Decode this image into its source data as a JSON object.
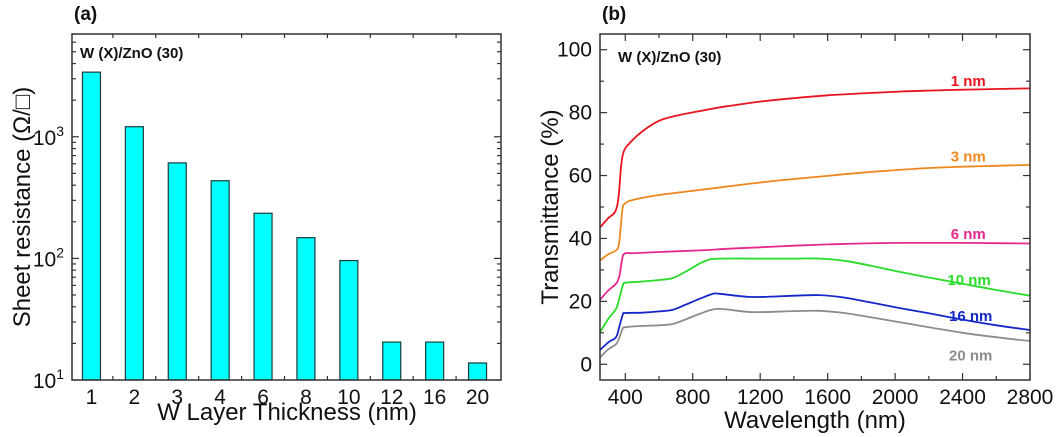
{
  "chart_data": [
    {
      "type": "bar",
      "panel_label": "(a)",
      "annotation": "W (X)/ZnO (30)",
      "title": "",
      "xlabel": "W Layer Thickness (nm)",
      "ylabel": "Sheet resistance (Ω/□)",
      "yscale": "log",
      "ylim": [
        10,
        7000
      ],
      "yticks": [
        {
          "value": 10,
          "base": "10",
          "exp": "1"
        },
        {
          "value": 100,
          "base": "10",
          "exp": "2"
        },
        {
          "value": 1000,
          "base": "10",
          "exp": "3"
        }
      ],
      "categories": [
        "1",
        "2",
        "3",
        "4",
        "6",
        "8",
        "10",
        "12",
        "16",
        "20"
      ],
      "values": [
        3400,
        1210,
        610,
        435,
        235,
        148,
        96,
        20.5,
        20.5,
        13.8
      ],
      "bar_color": "#00ffff",
      "grid": false
    },
    {
      "type": "line",
      "panel_label": "(b)",
      "annotation": "W (X)/ZnO (30)",
      "title": "",
      "xlabel": "Wavelength (nm)",
      "ylabel": "Transmittance (%)",
      "xlim": [
        250,
        2800
      ],
      "ylim": [
        -5,
        105
      ],
      "xticks": [
        400,
        800,
        1200,
        1600,
        2000,
        2400,
        2800
      ],
      "yticks": [
        0,
        20,
        40,
        60,
        80,
        100
      ],
      "grid": false,
      "series": [
        {
          "name": "1 nm",
          "color": "#e8141e",
          "label_at": [
            2330,
            88.5
          ],
          "x": [
            250,
            300,
            340,
            360,
            375,
            390,
            420,
            500,
            600,
            700,
            840,
            1000,
            1200,
            1400,
            1600,
            1800,
            2024,
            2200,
            2400,
            2600,
            2800
          ],
          "y": [
            43.5,
            46.5,
            48.5,
            53,
            63,
            67.5,
            70,
            74,
            77.4,
            79,
            80.5,
            82,
            83.5,
            84.6,
            85.5,
            86.1,
            86.7,
            87.0,
            87.3,
            87.5,
            87.7
          ]
        },
        {
          "name": "3 nm",
          "color": "#f0871e",
          "label_at": [
            2330,
            64.5
          ],
          "x": [
            250,
            300,
            355,
            370,
            382,
            395,
            450,
            600,
            840,
            1000,
            1200,
            1400,
            1600,
            1800,
            2024,
            2200,
            2400,
            2600,
            2800
          ],
          "y": [
            33,
            35,
            36.8,
            42,
            49,
            51,
            52.3,
            53.8,
            55.4,
            56.5,
            57.8,
            58.9,
            59.9,
            60.9,
            61.8,
            62.4,
            62.8,
            63.1,
            63.4
          ]
        },
        {
          "name": "6 nm",
          "color": "#e6288c",
          "label_at": [
            2330,
            39.8
          ],
          "x": [
            250,
            300,
            345,
            365,
            380,
            395,
            450,
            600,
            840,
            1000,
            1200,
            1400,
            1600,
            1800,
            2024,
            2200,
            2400,
            2600,
            2800
          ],
          "y": [
            20.5,
            23.5,
            25.6,
            28,
            33,
            35.2,
            35.3,
            35.7,
            36.2,
            36.7,
            37.2,
            37.7,
            38.1,
            38.4,
            38.6,
            38.6,
            38.6,
            38.5,
            38.4
          ]
        },
        {
          "name": "10 nm",
          "color": "#28dc28",
          "label_at": [
            2310,
            25.2
          ],
          "x": [
            250,
            300,
            345,
            365,
            385,
            400,
            500,
            600,
            680,
            760,
            840,
            900,
            960,
            1200,
            1400,
            1550,
            1700,
            1850,
            2024,
            2200,
            2400,
            2600,
            2800
          ],
          "y": [
            10.2,
            14.5,
            17.6,
            21,
            25,
            25.9,
            26.3,
            26.8,
            27.4,
            29.5,
            32,
            33.3,
            33.6,
            33.6,
            33.6,
            33.6,
            32.9,
            31.4,
            29.4,
            27.6,
            25.6,
            23.6,
            21.8
          ]
        },
        {
          "name": "16 nm",
          "color": "#1428c8",
          "label_at": [
            2320,
            13.8
          ],
          "x": [
            250,
            300,
            345,
            365,
            385,
            400,
            500,
            600,
            680,
            760,
            840,
            920,
            960,
            1150,
            1400,
            1550,
            1700,
            1850,
            2024,
            2200,
            2400,
            2600,
            2800
          ],
          "y": [
            4.5,
            7,
            8.6,
            12,
            15.8,
            16.3,
            16.4,
            16.8,
            17.3,
            19,
            20.8,
            22.4,
            22.4,
            21.4,
            21.8,
            22,
            21.2,
            19.7,
            17.9,
            16.2,
            14.2,
            12.4,
            10.9
          ]
        },
        {
          "name": "20 nm",
          "color": "#8c8c8c",
          "label_at": [
            2320,
            1.2
          ],
          "x": [
            250,
            300,
            345,
            365,
            385,
            400,
            500,
            600,
            680,
            760,
            840,
            950,
            1150,
            1400,
            1550,
            1700,
            1850,
            2024,
            2200,
            2400,
            2600,
            2800
          ],
          "y": [
            2.2,
            4.8,
            6.4,
            8.5,
            11.4,
            11.8,
            12.2,
            12.4,
            12.8,
            14.3,
            16,
            17.6,
            16.6,
            16.9,
            17,
            16.3,
            15,
            13.4,
            11.8,
            10,
            8.6,
            7.4
          ]
        }
      ]
    }
  ]
}
